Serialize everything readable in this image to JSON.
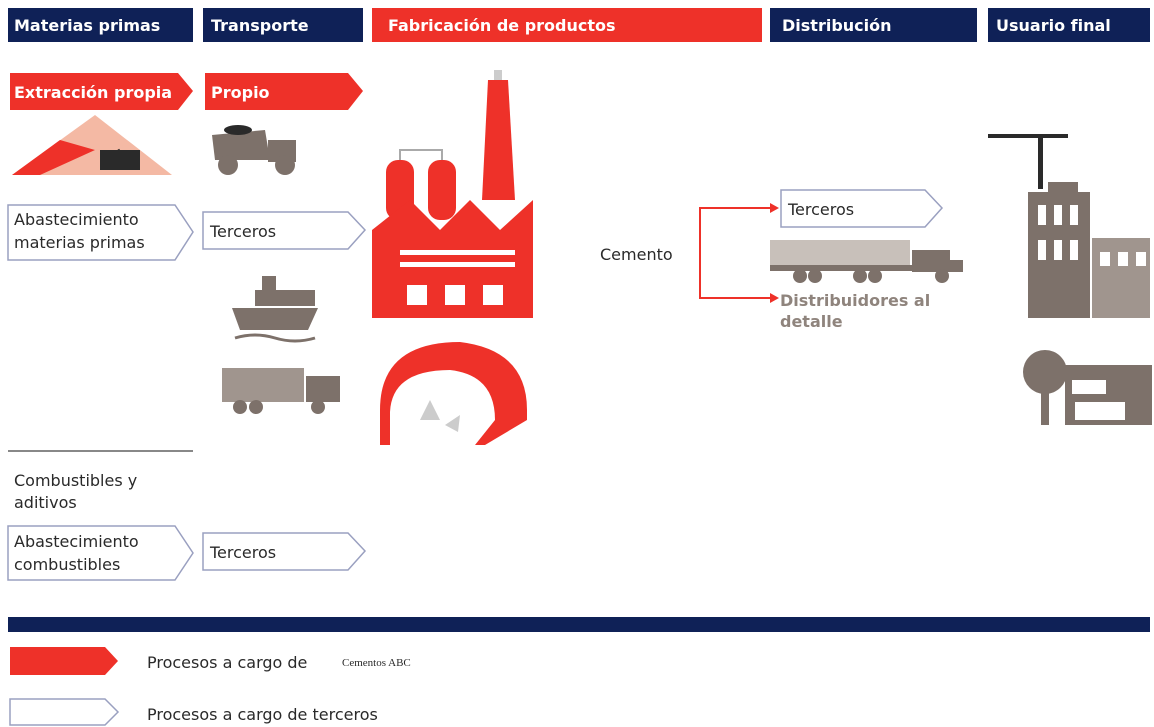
{
  "header": {
    "columns": [
      "Materias primas",
      "Transporte",
      "Fabricación de productos",
      "Distribución",
      "Usuario final"
    ]
  },
  "raw_materials": {
    "own": "Extracción propia",
    "supply": [
      "Abastecimiento",
      "materias primas"
    ],
    "fuels_heading": [
      "Combustibles y",
      "aditivos"
    ],
    "fuels_supply": [
      "Abastecimiento",
      "combustibles"
    ]
  },
  "transport": {
    "own": "Propio",
    "third_party": "Terceros",
    "fuels_third_party": "Terceros"
  },
  "manufacturing": {
    "product": "Cemento"
  },
  "distribution": {
    "third_party": "Terceros",
    "retailers": [
      "Distribuidores al",
      "detalle"
    ]
  },
  "legend": {
    "own_label": "Procesos a cargo de",
    "company": "Cementos ABC",
    "third_party_label": "Procesos a cargo de terceros"
  }
}
